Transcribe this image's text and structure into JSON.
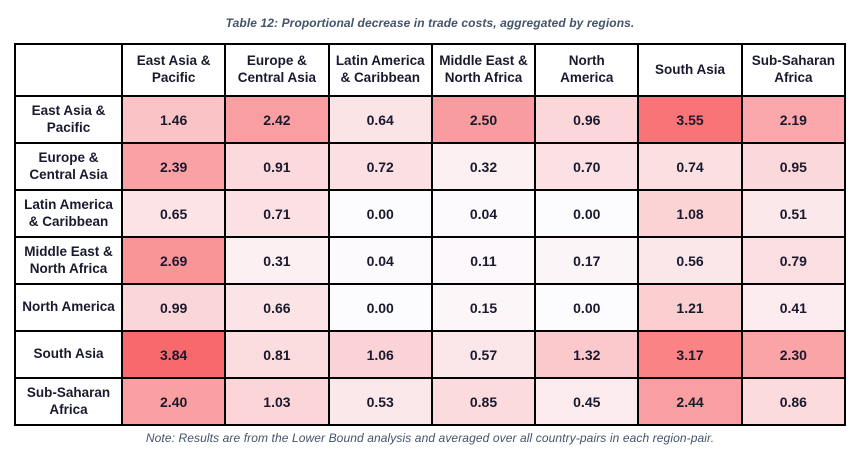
{
  "title": "Table 12: Proportional decrease in trade costs, aggregated by regions.",
  "note": "Note: Results are from the Lower Bound analysis and averaged over all country-pairs in each region-pair.",
  "colors": {
    "heat_min": "#FCFCFF",
    "heat_max": "#F8696B",
    "border": "#000000",
    "text": "#1A1A2E",
    "caption_text": "#44546A",
    "background": "#FFFFFF"
  },
  "chart_data": {
    "type": "heatmap",
    "title": "Table 12: Proportional decrease in trade costs, aggregated by regions.",
    "note": "Note: Results are from the Lower Bound analysis and averaged over all country-pairs in each region-pair.",
    "columns": [
      "East Asia & Pacific",
      "Europe & Central Asia",
      "Latin America & Caribbean",
      "Middle East & North Africa",
      "North America",
      "South Asia",
      "Sub-Saharan Africa"
    ],
    "rows": [
      "East Asia & Pacific",
      "Europe & Central Asia",
      "Latin America & Caribbean",
      "Middle East & North Africa",
      "North America",
      "South Asia",
      "Sub-Saharan Africa"
    ],
    "values": [
      [
        1.46,
        2.42,
        0.64,
        2.5,
        0.96,
        3.55,
        2.19
      ],
      [
        2.39,
        0.91,
        0.72,
        0.32,
        0.7,
        0.74,
        0.95
      ],
      [
        0.65,
        0.71,
        0.0,
        0.04,
        0.0,
        1.08,
        0.51
      ],
      [
        2.69,
        0.31,
        0.04,
        0.11,
        0.17,
        0.56,
        0.79
      ],
      [
        0.99,
        0.66,
        0.0,
        0.15,
        0.0,
        1.21,
        0.41
      ],
      [
        3.84,
        0.81,
        1.06,
        0.57,
        1.32,
        3.17,
        2.3
      ],
      [
        2.4,
        1.03,
        0.53,
        0.85,
        0.45,
        2.44,
        0.86
      ]
    ],
    "value_range": [
      0.0,
      3.84
    ],
    "value_format": "2-decimals",
    "colorscale": {
      "low": "#FCFCFF",
      "high": "#F8696B"
    },
    "grid": true,
    "legend": "none"
  }
}
